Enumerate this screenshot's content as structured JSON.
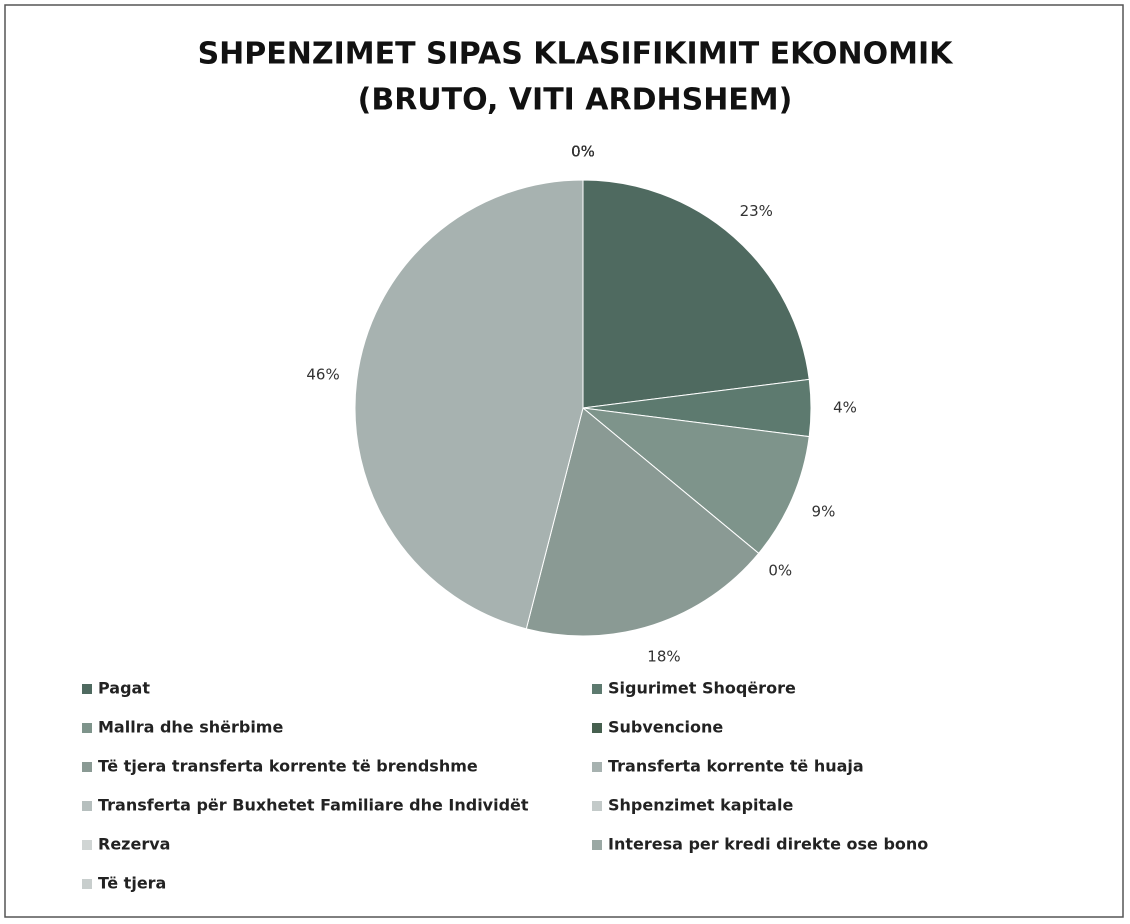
{
  "chart_data": {
    "type": "pie",
    "title": [
      "SHPENZIMET SIPAS KLASIFIKIMIT EKONOMIK",
      "(BRUTO, VITI ARDHSHEM)"
    ],
    "categories": [
      "Pagat",
      "Sigurimet Shoqërore",
      "Mallra dhe shërbime",
      "Subvencione",
      "Të tjera transferta korrente të brendshme",
      "Transferta korrente të huaja",
      "Transferta për Buxhetet Familiare dhe Individët",
      "Shpenzimet kapitale",
      "Rezerva",
      "Interesa per kredi direkte ose bono",
      "Të tjera"
    ],
    "values": [
      23,
      4,
      9,
      0,
      18,
      46,
      0,
      0,
      0,
      0,
      0
    ],
    "value_labels": [
      "23%",
      "4%",
      "9%",
      "0%",
      "18%",
      "46%",
      "0%",
      "0%",
      "0%",
      "0%",
      "0%"
    ],
    "colors": [
      "#4f6a60",
      "#5d7a6f",
      "#7e948b",
      "#46604f",
      "#8a9a94",
      "#a7b2b0",
      "#b6bfbe",
      "#c3cac9",
      "#d0d5d4",
      "#9aa8a4",
      "#c8cecd"
    ],
    "legend": "bottom"
  }
}
